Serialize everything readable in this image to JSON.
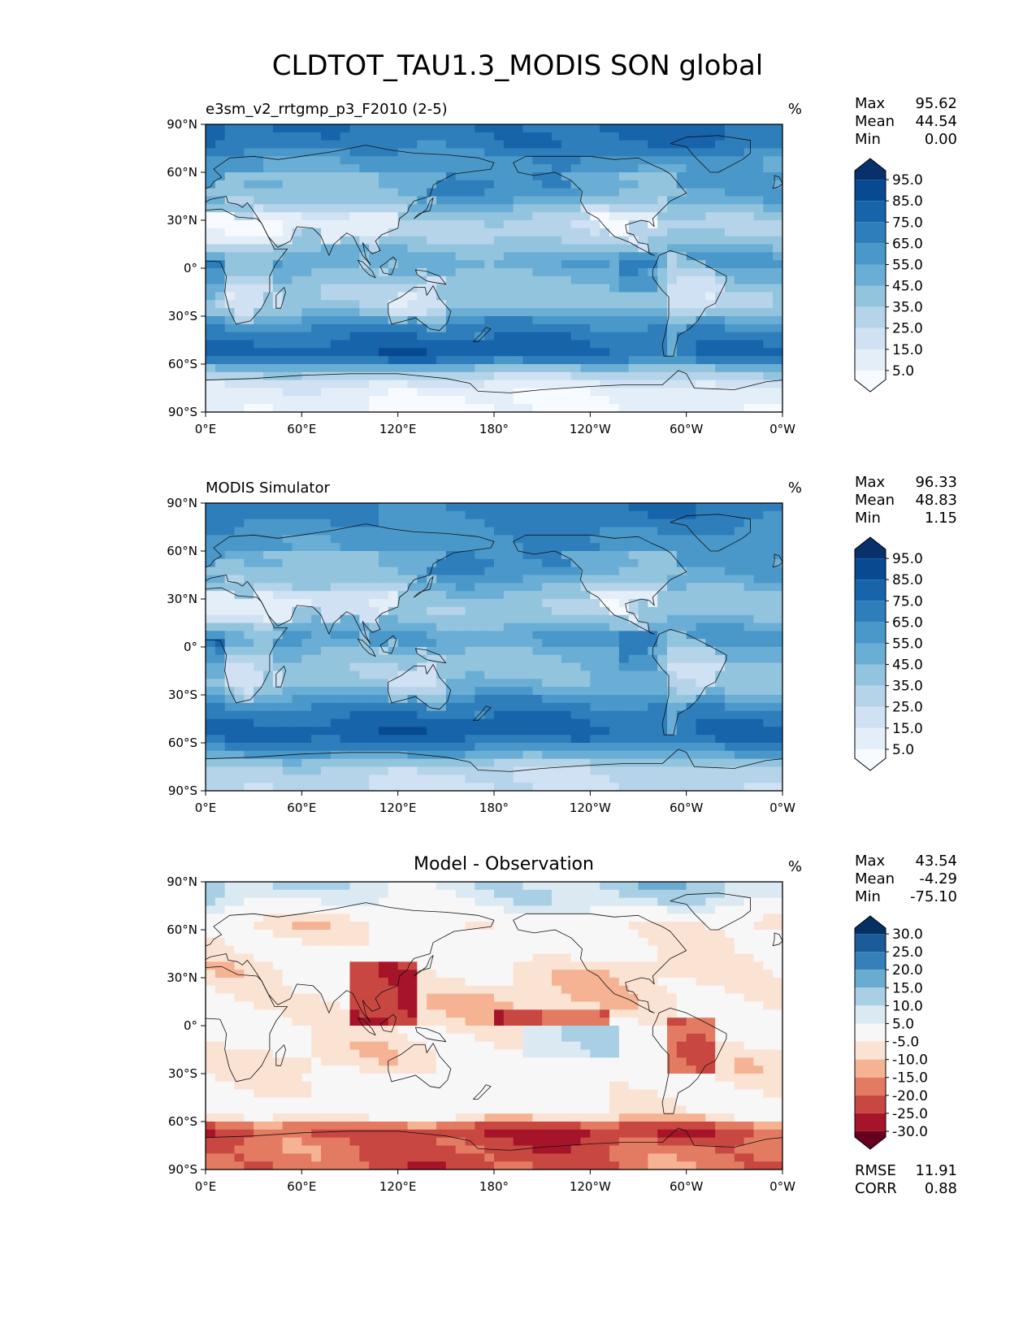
{
  "figure": {
    "title": "CLDTOT_TAU1.3_MODIS SON global"
  },
  "axes": {
    "lat_ticks": [
      "90°N",
      "60°N",
      "30°N",
      "0°",
      "30°S",
      "60°S",
      "90°S"
    ],
    "lon_ticks": [
      "0°E",
      "60°E",
      "120°E",
      "180°",
      "120°W",
      "60°W",
      "0°W"
    ]
  },
  "panels": [
    {
      "id": "model",
      "left_title": "e3sm_v2_rrtgmp_p3_F2010 (2-5)",
      "center_title": "",
      "units": "%",
      "stats": [
        {
          "label": "Max",
          "value": "95.62"
        },
        {
          "label": "Mean",
          "value": "44.54"
        },
        {
          "label": "Min",
          "value": "0.00"
        }
      ],
      "colorbar": {
        "colors": [
          "#f7fbff",
          "#e3eef9",
          "#cfe1f2",
          "#b5d4e9",
          "#93c4de",
          "#6aaed6",
          "#4a98c9",
          "#2e7ebc",
          "#1764ab",
          "#084a91",
          "#08306b"
        ],
        "labels": [
          "5.0",
          "15.0",
          "25.0",
          "35.0",
          "45.0",
          "55.0",
          "65.0",
          "75.0",
          "85.0",
          "95.0"
        ]
      },
      "extra_stats": []
    },
    {
      "id": "obs",
      "left_title": "MODIS Simulator",
      "center_title": "",
      "units": "%",
      "stats": [
        {
          "label": "Max",
          "value": "96.33"
        },
        {
          "label": "Mean",
          "value": "48.83"
        },
        {
          "label": "Min",
          "value": "1.15"
        }
      ],
      "colorbar": {
        "colors": [
          "#f7fbff",
          "#e3eef9",
          "#cfe1f2",
          "#b5d4e9",
          "#93c4de",
          "#6aaed6",
          "#4a98c9",
          "#2e7ebc",
          "#1764ab",
          "#084a91",
          "#08306b"
        ],
        "labels": [
          "5.0",
          "15.0",
          "25.0",
          "35.0",
          "45.0",
          "55.0",
          "65.0",
          "75.0",
          "85.0",
          "95.0"
        ]
      },
      "extra_stats": []
    },
    {
      "id": "diff",
      "left_title": "",
      "center_title": "Model - Observation",
      "units": "%",
      "stats": [
        {
          "label": "Max",
          "value": "43.54"
        },
        {
          "label": "Mean",
          "value": "-4.29"
        },
        {
          "label": "Min",
          "value": "-75.10"
        }
      ],
      "colorbar": {
        "colors": [
          "#67001f",
          "#a51429",
          "#c94741",
          "#e27b62",
          "#f6b394",
          "#fbe3d4",
          "#f7f7f7",
          "#dbeaf2",
          "#a9cfe5",
          "#6aacd0",
          "#3580b9",
          "#1b5a9b",
          "#053061"
        ],
        "labels": [
          "-30.0",
          "-25.0",
          "-20.0",
          "-15.0",
          "-10.0",
          "-5.0",
          "5.0",
          "10.0",
          "15.0",
          "20.0",
          "25.0",
          "30.0"
        ]
      },
      "extra_stats": [
        {
          "label": "RMSE",
          "value": "11.91"
        },
        {
          "label": "CORR",
          "value": "0.88"
        }
      ]
    }
  ],
  "chart_data": [
    {
      "type": "heatmap",
      "title": "e3sm_v2_rrtgmp_p3_F2010 (2-5)",
      "units": "%",
      "xlim": [
        0,
        360
      ],
      "ylim": [
        -90,
        90
      ],
      "levels": [
        5,
        15,
        25,
        35,
        45,
        55,
        65,
        75,
        85,
        95
      ],
      "approx_zonal_mean_by_lat": {
        "lat": [
          85,
          75,
          65,
          55,
          45,
          35,
          25,
          15,
          5,
          -5,
          -15,
          -25,
          -35,
          -45,
          -55,
          -65,
          -75,
          -85
        ],
        "value": [
          75,
          70,
          55,
          65,
          60,
          40,
          30,
          40,
          55,
          45,
          35,
          40,
          65,
          75,
          80,
          35,
          10,
          5
        ]
      },
      "max": 95.62,
      "mean": 44.54,
      "min": 0.0
    },
    {
      "type": "heatmap",
      "title": "MODIS Simulator",
      "units": "%",
      "xlim": [
        0,
        360
      ],
      "ylim": [
        -90,
        90
      ],
      "levels": [
        5,
        15,
        25,
        35,
        45,
        55,
        65,
        75,
        85,
        95
      ],
      "approx_zonal_mean_by_lat": {
        "lat": [
          85,
          75,
          65,
          55,
          45,
          35,
          25,
          15,
          5,
          -5,
          -15,
          -25,
          -35,
          -45,
          -55,
          -65,
          -75,
          -85
        ],
        "value": [
          70,
          65,
          60,
          65,
          60,
          45,
          35,
          45,
          60,
          45,
          40,
          45,
          65,
          75,
          80,
          60,
          30,
          25
        ]
      },
      "max": 96.33,
      "mean": 48.83,
      "min": 1.15
    },
    {
      "type": "heatmap",
      "title": "Model - Observation",
      "units": "%",
      "xlim": [
        0,
        360
      ],
      "ylim": [
        -90,
        90
      ],
      "levels": [
        -30,
        -25,
        -20,
        -15,
        -10,
        -5,
        5,
        10,
        15,
        20,
        25,
        30
      ],
      "approx_zonal_mean_by_lat": {
        "lat": [
          85,
          75,
          65,
          55,
          45,
          35,
          25,
          15,
          5,
          -5,
          -15,
          -25,
          -35,
          -45,
          -55,
          -65,
          -75,
          -85
        ],
        "value": [
          10,
          5,
          -5,
          -3,
          -2,
          -6,
          -6,
          -8,
          -6,
          -3,
          -5,
          -5,
          -2,
          -1,
          -2,
          -25,
          -20,
          -20
        ]
      },
      "max": 43.54,
      "mean": -4.29,
      "min": -75.1,
      "rmse": 11.91,
      "corr": 0.88
    }
  ]
}
